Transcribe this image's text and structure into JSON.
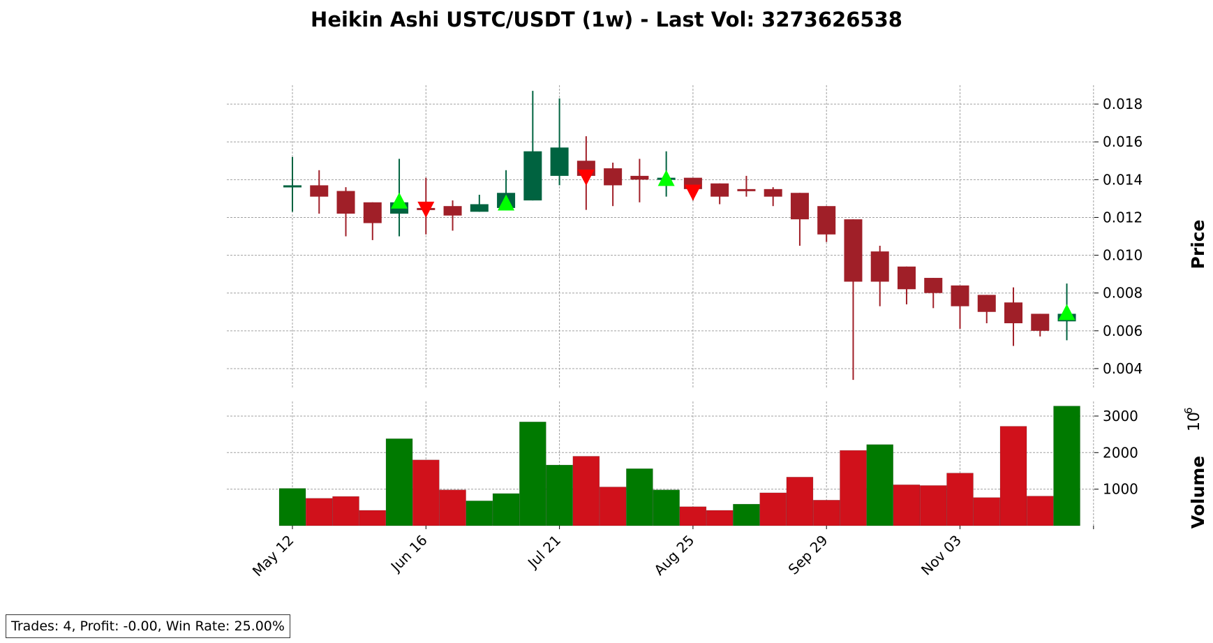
{
  "chart_data": {
    "type": "candlestick",
    "title": "Heikin Ashi USTC/USDT (1w) - Last Vol: 3273626538",
    "price_ylabel": "Price",
    "volume_ylabel": "Volume",
    "volume_exponent": "6",
    "price_ylim": [
      0.003,
      0.019
    ],
    "price_ticks": [
      "0.004",
      "0.006",
      "0.008",
      "0.010",
      "0.012",
      "0.014",
      "0.016",
      "0.018"
    ],
    "volume_ylim": [
      0,
      3400
    ],
    "volume_ticks": [
      "1000",
      "2000",
      "3000"
    ],
    "x_ticks": [
      {
        "index": 0,
        "label": "May 12"
      },
      {
        "index": 5,
        "label": "Jun 16"
      },
      {
        "index": 10,
        "label": "Jul 21"
      },
      {
        "index": 15,
        "label": "Aug 25"
      },
      {
        "index": 20,
        "label": "Sep 29"
      },
      {
        "index": 25,
        "label": "Nov 03"
      }
    ],
    "candles": [
      {
        "o": 0.0137,
        "h": 0.0152,
        "l": 0.0123,
        "c": 0.0137,
        "up": true
      },
      {
        "o": 0.0137,
        "h": 0.0145,
        "l": 0.0122,
        "c": 0.0131,
        "up": false
      },
      {
        "o": 0.0134,
        "h": 0.0136,
        "l": 0.011,
        "c": 0.0122,
        "up": false
      },
      {
        "o": 0.0128,
        "h": 0.0128,
        "l": 0.0108,
        "c": 0.0117,
        "up": false
      },
      {
        "o": 0.0122,
        "h": 0.0151,
        "l": 0.011,
        "c": 0.0128,
        "up": true
      },
      {
        "o": 0.0125,
        "h": 0.0141,
        "l": 0.0111,
        "c": 0.0125,
        "up": false
      },
      {
        "o": 0.0126,
        "h": 0.0129,
        "l": 0.0113,
        "c": 0.0121,
        "up": false
      },
      {
        "o": 0.0123,
        "h": 0.0132,
        "l": 0.0123,
        "c": 0.0127,
        "up": true
      },
      {
        "o": 0.0125,
        "h": 0.0145,
        "l": 0.0125,
        "c": 0.0133,
        "up": true
      },
      {
        "o": 0.0129,
        "h": 0.0187,
        "l": 0.0129,
        "c": 0.0155,
        "up": true
      },
      {
        "o": 0.0142,
        "h": 0.0183,
        "l": 0.0137,
        "c": 0.0157,
        "up": true
      },
      {
        "o": 0.015,
        "h": 0.0163,
        "l": 0.0124,
        "c": 0.0142,
        "up": false
      },
      {
        "o": 0.0146,
        "h": 0.0149,
        "l": 0.0126,
        "c": 0.0137,
        "up": false
      },
      {
        "o": 0.0142,
        "h": 0.0151,
        "l": 0.0128,
        "c": 0.014,
        "up": false
      },
      {
        "o": 0.0141,
        "h": 0.0155,
        "l": 0.0131,
        "c": 0.014,
        "up": true
      },
      {
        "o": 0.0141,
        "h": 0.0141,
        "l": 0.0129,
        "c": 0.0135,
        "up": false
      },
      {
        "o": 0.0138,
        "h": 0.0138,
        "l": 0.0127,
        "c": 0.0131,
        "up": false
      },
      {
        "o": 0.0135,
        "h": 0.0142,
        "l": 0.0131,
        "c": 0.0134,
        "up": false
      },
      {
        "o": 0.0135,
        "h": 0.0136,
        "l": 0.0126,
        "c": 0.0131,
        "up": false
      },
      {
        "o": 0.0133,
        "h": 0.0133,
        "l": 0.0105,
        "c": 0.0119,
        "up": false
      },
      {
        "o": 0.0126,
        "h": 0.0126,
        "l": 0.0107,
        "c": 0.0111,
        "up": false
      },
      {
        "o": 0.0119,
        "h": 0.0119,
        "l": 0.0034,
        "c": 0.0086,
        "up": false
      },
      {
        "o": 0.0102,
        "h": 0.0105,
        "l": 0.0073,
        "c": 0.0086,
        "up": false
      },
      {
        "o": 0.0094,
        "h": 0.0094,
        "l": 0.0074,
        "c": 0.0082,
        "up": false
      },
      {
        "o": 0.0088,
        "h": 0.0088,
        "l": 0.0072,
        "c": 0.008,
        "up": false
      },
      {
        "o": 0.0084,
        "h": 0.0084,
        "l": 0.0061,
        "c": 0.0073,
        "up": false
      },
      {
        "o": 0.0079,
        "h": 0.0079,
        "l": 0.0064,
        "c": 0.007,
        "up": false
      },
      {
        "o": 0.0075,
        "h": 0.0083,
        "l": 0.0052,
        "c": 0.0064,
        "up": false
      },
      {
        "o": 0.0069,
        "h": 0.0069,
        "l": 0.0057,
        "c": 0.006,
        "up": false
      },
      {
        "o": 0.0065,
        "h": 0.0085,
        "l": 0.0055,
        "c": 0.0069,
        "up": true
      }
    ],
    "volume": [
      {
        "v": 1020,
        "up": true
      },
      {
        "v": 750,
        "up": false
      },
      {
        "v": 800,
        "up": false
      },
      {
        "v": 420,
        "up": false
      },
      {
        "v": 2380,
        "up": true
      },
      {
        "v": 1800,
        "up": false
      },
      {
        "v": 980,
        "up": false
      },
      {
        "v": 680,
        "up": true
      },
      {
        "v": 880,
        "up": true
      },
      {
        "v": 2840,
        "up": true
      },
      {
        "v": 1660,
        "up": true
      },
      {
        "v": 1900,
        "up": false
      },
      {
        "v": 1060,
        "up": false
      },
      {
        "v": 1560,
        "up": true
      },
      {
        "v": 980,
        "up": true
      },
      {
        "v": 520,
        "up": false
      },
      {
        "v": 420,
        "up": false
      },
      {
        "v": 590,
        "up": true
      },
      {
        "v": 900,
        "up": false
      },
      {
        "v": 1330,
        "up": false
      },
      {
        "v": 700,
        "up": false
      },
      {
        "v": 2060,
        "up": false
      },
      {
        "v": 2220,
        "up": true
      },
      {
        "v": 1120,
        "up": false
      },
      {
        "v": 1100,
        "up": false
      },
      {
        "v": 1440,
        "up": false
      },
      {
        "v": 770,
        "up": false
      },
      {
        "v": 2720,
        "up": false
      },
      {
        "v": 810,
        "up": false
      },
      {
        "v": 3273.626538,
        "up": true
      }
    ],
    "buy_markers": [
      {
        "index": 4,
        "price": 0.0128
      },
      {
        "index": 8,
        "price": 0.0127
      },
      {
        "index": 14,
        "price": 0.014
      },
      {
        "index": 29,
        "price": 0.0069
      }
    ],
    "sell_markers": [
      {
        "index": 5,
        "price": 0.0125
      },
      {
        "index": 11,
        "price": 0.0142
      },
      {
        "index": 15,
        "price": 0.0134
      }
    ],
    "colors": {
      "candle_up": "#006340",
      "candle_down": "#a01f28",
      "volume_up": "#007a00",
      "volume_down": "#d0111b",
      "buy_marker": "#00ff00",
      "sell_marker": "#ff0000",
      "grid": "#a0a0a0"
    },
    "grid": true
  },
  "stats_label": "Trades: 4, Profit: -0.00, Win Rate: 25.00%"
}
